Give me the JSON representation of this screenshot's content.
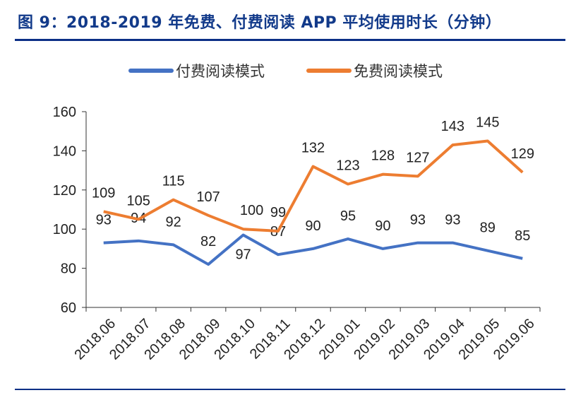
{
  "title": "图 9：2018-2019 年免费、付费阅读 APP 平均使用时长（分钟）",
  "chart_data": {
    "type": "line",
    "categories": [
      "2018.06",
      "2018.07",
      "2018.08",
      "2018.09",
      "2018.10",
      "2018.11",
      "2018.12",
      "2019.01",
      "2019.02",
      "2019.03",
      "2019.04",
      "2019.05",
      "2019.06"
    ],
    "series": [
      {
        "name": "付费阅读模式",
        "color": "#4472C4",
        "values": [
          93,
          94,
          92,
          82,
          97,
          87,
          90,
          95,
          90,
          93,
          93,
          89,
          85
        ]
      },
      {
        "name": "免费阅读模式",
        "color": "#ED7D31",
        "values": [
          109,
          105,
          115,
          107,
          100,
          99,
          132,
          123,
          128,
          127,
          143,
          145,
          129
        ]
      }
    ],
    "yticks": [
      "60",
      "80",
      "100",
      "120",
      "140",
      "160"
    ],
    "ylim": [
      60,
      160
    ],
    "legend": "top",
    "grid": false,
    "data_labels": true
  }
}
